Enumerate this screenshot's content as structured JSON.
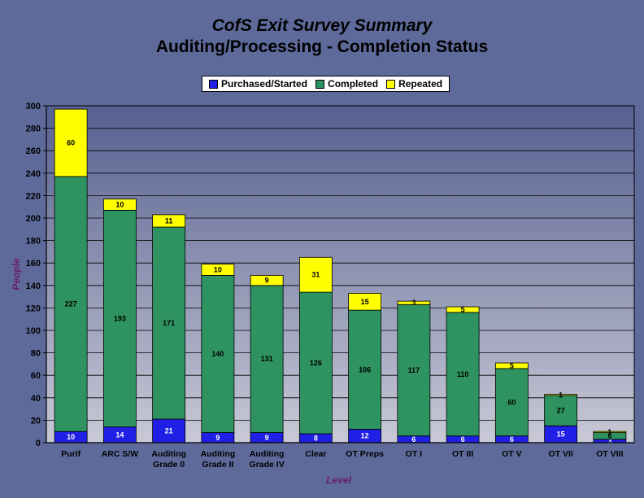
{
  "chart_data": {
    "type": "stacked-bar",
    "title": "CofS Exit Survey Summary",
    "subtitle": "Auditing/Processing - Completion Status",
    "xlabel": "Level",
    "ylabel": "People",
    "ylim": [
      0,
      300
    ],
    "ytick_step": 20,
    "grid": true,
    "legend_position": "top-center",
    "categories": [
      "Purif",
      "ARC S/W",
      "Auditing Grade 0",
      "Auditing Grade II",
      "Auditing Grade IV",
      "Clear",
      "OT Preps",
      "OT I",
      "OT III",
      "OT V",
      "OT VII",
      "OT VIII"
    ],
    "series": [
      {
        "name": "Purchased/Started",
        "color": "#1f1fe6",
        "label_color": "#ffffff",
        "values": [
          10,
          14,
          21,
          9,
          9,
          8,
          12,
          6,
          6,
          6,
          15,
          3
        ]
      },
      {
        "name": "Completed",
        "color": "#2e9360",
        "label_color": "#000000",
        "values": [
          227,
          193,
          171,
          140,
          131,
          126,
          106,
          117,
          110,
          60,
          27,
          6
        ]
      },
      {
        "name": "Repeated",
        "color": "#ffff00",
        "label_color": "#000000",
        "values": [
          60,
          10,
          11,
          10,
          9,
          31,
          15,
          3,
          5,
          5,
          1,
          1
        ]
      }
    ]
  }
}
